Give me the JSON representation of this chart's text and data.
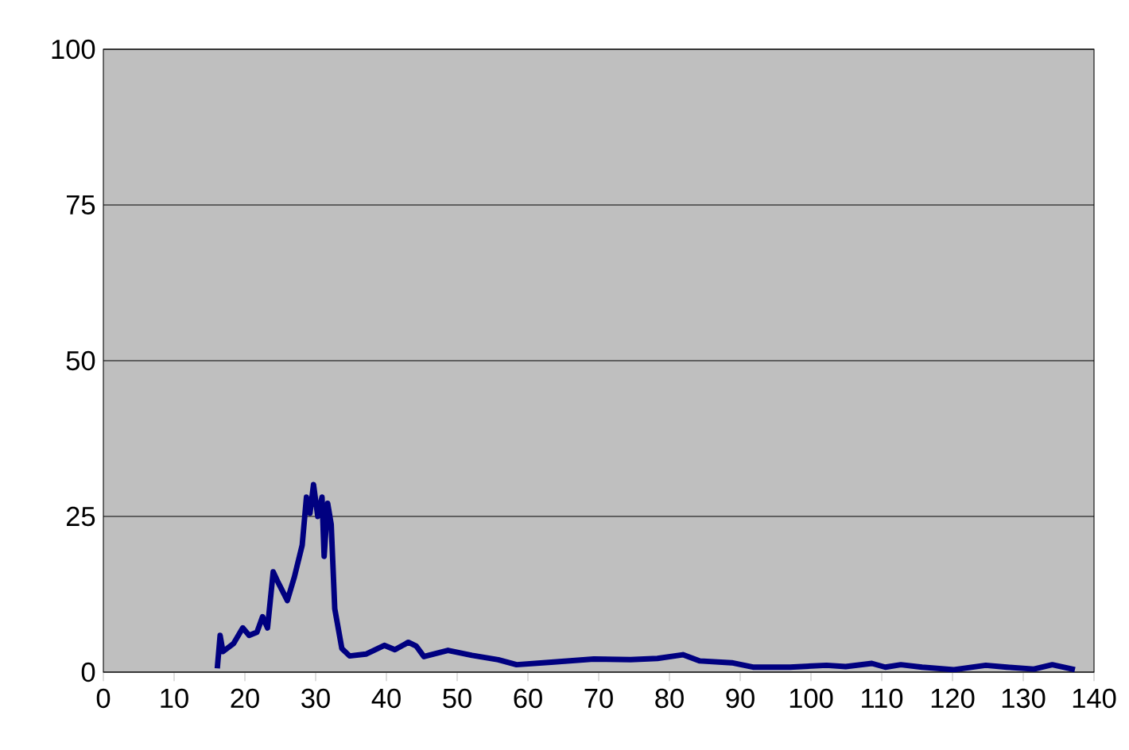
{
  "chart_data": {
    "type": "line",
    "x": [
      16.1,
      16.5,
      16.9,
      18.4,
      19.7,
      20.6,
      21.7,
      22.5,
      23.2,
      24.0,
      24.7,
      26.0,
      27.0,
      28.1,
      28.7,
      29.2,
      29.7,
      30.3,
      30.9,
      31.2,
      31.7,
      32.2,
      32.7,
      33.7,
      34.8,
      37.1,
      39.7,
      41.2,
      43.1,
      44.2,
      45.3,
      48.7,
      52.1,
      55.8,
      58.4,
      63.3,
      69.3,
      74.5,
      78.3,
      81.9,
      84.3,
      88.8,
      91.8,
      97.0,
      102.2,
      104.9,
      108.6,
      110.5,
      112.7,
      115.7,
      120.2,
      124.7,
      127.7,
      131.5,
      134.1,
      137.3
    ],
    "series": [
      {
        "color": "#000080",
        "values": [
          0.6,
          5.9,
          3.3,
          4.6,
          7.1,
          5.9,
          6.4,
          8.9,
          7.1,
          16.1,
          14.4,
          11.5,
          15.3,
          20.4,
          28.1,
          25.5,
          30.1,
          25.0,
          28.1,
          18.6,
          27.1,
          23.7,
          10.2,
          3.8,
          2.6,
          2.9,
          4.3,
          3.6,
          4.8,
          4.2,
          2.5,
          3.5,
          2.7,
          2.0,
          1.2,
          1.6,
          2.1,
          2.0,
          2.2,
          2.8,
          1.8,
          1.5,
          0.8,
          0.8,
          1.1,
          0.9,
          1.4,
          0.8,
          1.2,
          0.8,
          0.4,
          1.1,
          0.8,
          0.5,
          1.2,
          0.4
        ]
      }
    ],
    "xlim": [
      0,
      140
    ],
    "xticks": [
      0,
      10,
      20,
      30,
      40,
      50,
      60,
      70,
      80,
      90,
      100,
      110,
      120,
      130,
      140
    ],
    "ylim": [
      0,
      100
    ],
    "yticks": [
      0,
      25,
      50,
      75,
      100
    ],
    "grid": "y",
    "marker": "none",
    "line_style": "solid"
  }
}
